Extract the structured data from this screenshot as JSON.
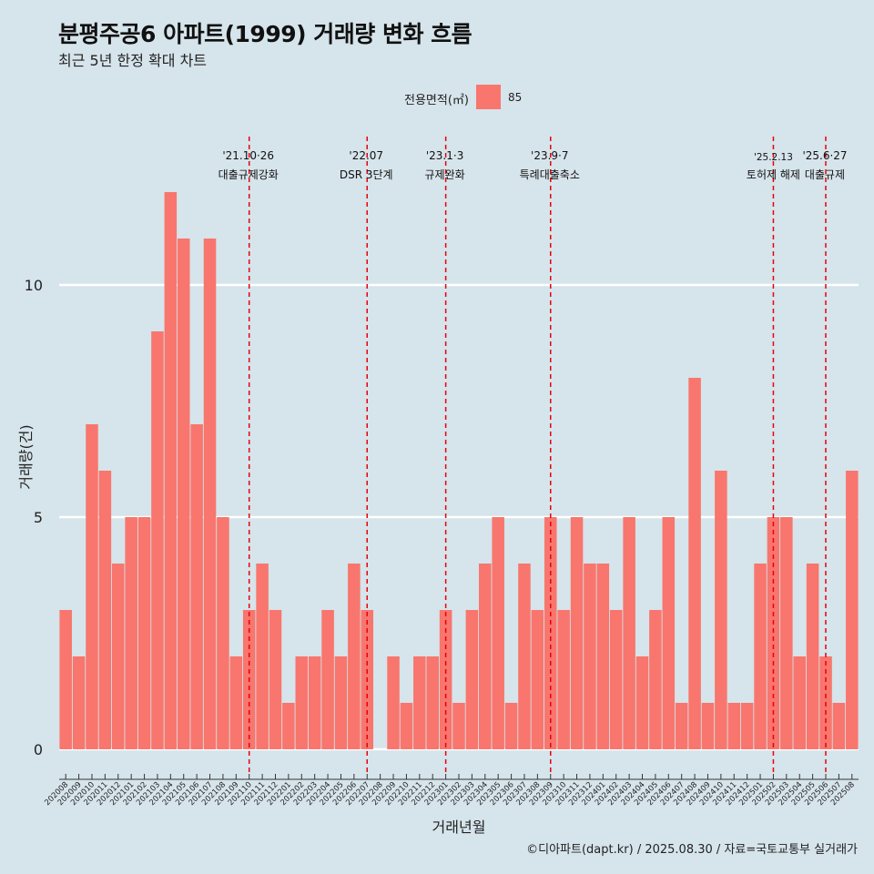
{
  "title": "분평주공6 아파트(1999) 거래량 변화 흐름",
  "subtitle": "최근 5년 한정 확대 차트",
  "caption": "©디아파트(dapt.kr) / 2025.08.30 / 자료=국토교통부 실거래가",
  "legend": {
    "title": "전용면적(㎡)",
    "label": "85",
    "color": "#f8766d"
  },
  "chart_data": {
    "type": "bar",
    "title": "분평주공6 아파트(1999) 거래량 변화 흐름",
    "subtitle": "최근 5년 한정 확대 차트",
    "xlabel": "거래년월",
    "ylabel": "거래량(건)",
    "ylim": [
      0,
      12.5
    ],
    "yticks": [
      0,
      5,
      10
    ],
    "grid": true,
    "legend_position": "top",
    "series": [
      {
        "name": "85",
        "color": "#f8766d",
        "values": [
          3,
          2,
          7,
          6,
          4,
          5,
          5,
          9,
          12,
          11,
          7,
          11,
          5,
          2,
          3,
          4,
          3,
          1,
          2,
          2,
          3,
          2,
          4,
          3,
          0,
          2,
          1,
          2,
          2,
          3,
          1,
          3,
          4,
          5,
          1,
          4,
          3,
          5,
          3,
          5,
          4,
          4,
          3,
          5,
          2,
          3,
          5,
          1,
          8,
          1,
          6,
          1,
          1,
          4,
          5,
          5,
          2,
          4,
          2,
          1,
          6
        ]
      }
    ],
    "categories": [
      "202008",
      "202009",
      "202010",
      "202011",
      "202012",
      "202101",
      "202102",
      "202103",
      "202104",
      "202105",
      "202106",
      "202107",
      "202108",
      "202109",
      "202110",
      "202111",
      "202112",
      "202201",
      "202202",
      "202203",
      "202204",
      "202205",
      "202206",
      "202207",
      "202208",
      "202209",
      "202210",
      "202211",
      "202212",
      "202301",
      "202302",
      "202303",
      "202304",
      "202305",
      "202306",
      "202307",
      "202308",
      "202309",
      "202310",
      "202311",
      "202312",
      "202401",
      "202402",
      "202403",
      "202404",
      "202405",
      "202406",
      "202407",
      "202408",
      "202409",
      "202410",
      "202411",
      "202412",
      "202501",
      "202502",
      "202503",
      "202504",
      "202505",
      "202506",
      "202507",
      "202508"
    ],
    "annotations": [
      {
        "category": "202110",
        "date": "'21.10·26",
        "label": "대출규제강화"
      },
      {
        "category": "202207",
        "date": "'22.07",
        "label": "DSR 3단계"
      },
      {
        "category": "202301",
        "date": "'23.1·3",
        "label": "규제완화"
      },
      {
        "category": "202309",
        "date": "'23.9·7",
        "label": "특례대출축소"
      },
      {
        "category": "202502",
        "date": "'25.2.13",
        "label": "토허제 해제"
      },
      {
        "category": "202506",
        "date": "'25.6·27",
        "label": "대출규제"
      }
    ]
  }
}
